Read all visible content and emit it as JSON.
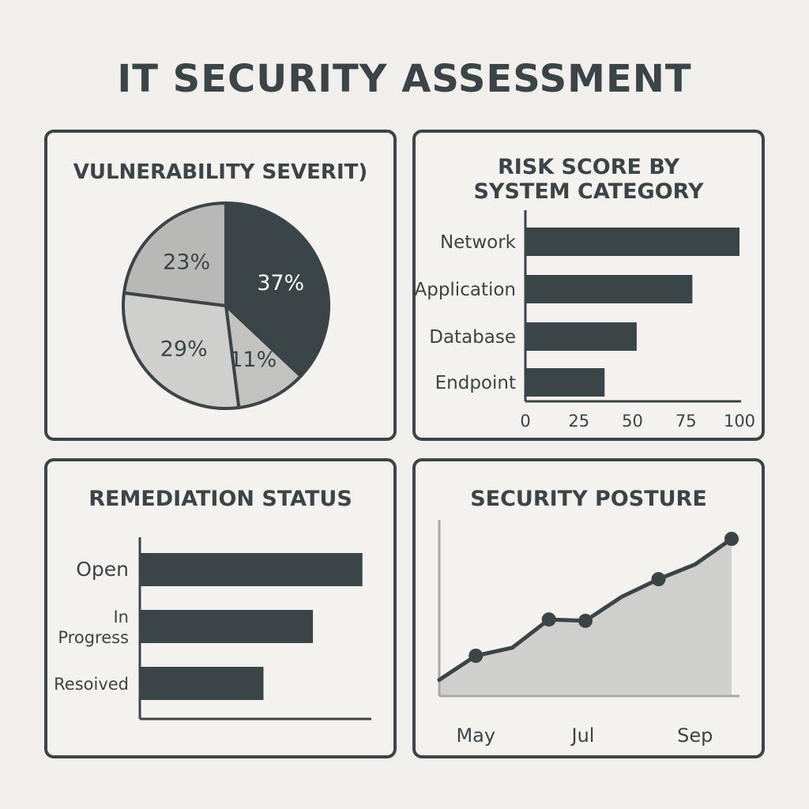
{
  "page": {
    "title": "IT SECURITY ASSESSMENT"
  },
  "colors": {
    "dark": "#3b4446",
    "medium": "#b5b5b3",
    "light": "#c9c9c7",
    "fill": "#cfcfcd"
  },
  "chart_data": [
    {
      "type": "pie",
      "title": "VULNERABILITY SEVERIT)",
      "slices": [
        {
          "label": "37%",
          "value": 37,
          "color": "#3b4446",
          "text_color": "#ffffff"
        },
        {
          "label": "11%",
          "value": 11,
          "color": "#c2c2c0",
          "text_color": "#3b4446"
        },
        {
          "label": "29%",
          "value": 29,
          "color": "#cfcfcd",
          "text_color": "#3b4446"
        },
        {
          "label": "23%",
          "value": 23,
          "color": "#b8b8b6",
          "text_color": "#3b4446"
        }
      ]
    },
    {
      "type": "bar",
      "orientation": "horizontal",
      "title": [
        "RISK SCORE BY",
        "SYSTEM CATEGORY"
      ],
      "categories": [
        "Network",
        "Application",
        "Database",
        "Endpoint"
      ],
      "values": [
        100,
        78,
        52,
        37
      ],
      "xlim": [
        0,
        100
      ],
      "xticks": [
        "0",
        "25",
        "50",
        "75",
        "100"
      ]
    },
    {
      "type": "bar",
      "orientation": "horizontal",
      "title": "REMEDIATION STATUS",
      "categories": [
        [
          "Open"
        ],
        [
          "In",
          "Progress"
        ],
        [
          "Resoived"
        ]
      ],
      "values": [
        90,
        70,
        50
      ],
      "xlim": [
        0,
        100
      ]
    },
    {
      "type": "area",
      "title": "SECURITY POSTURE",
      "x": [
        0,
        1,
        2,
        3,
        4,
        5,
        6,
        7,
        8
      ],
      "y": [
        12,
        30,
        36,
        57,
        56,
        74,
        87,
        98,
        117
      ],
      "markers": [
        1,
        3,
        4,
        6,
        8
      ],
      "ylim": [
        0,
        130
      ],
      "xticks": [
        {
          "x": 1,
          "label": "May"
        },
        {
          "x": 4,
          "label": "Jul"
        },
        {
          "x": 7,
          "label": "Sep"
        }
      ]
    }
  ]
}
